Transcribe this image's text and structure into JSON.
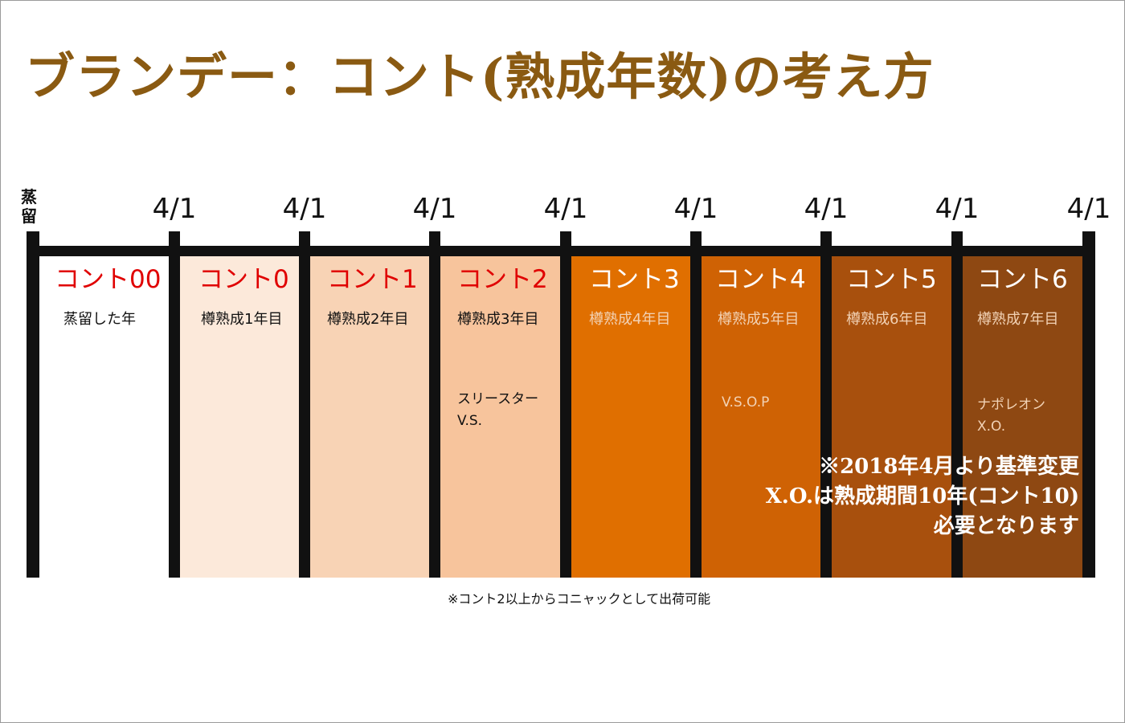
{
  "title": "ブランデー：コント(熟成年数)の考え方",
  "distill_label": "蒸留",
  "date_label": "4/1",
  "periods": [
    {
      "cont": "コント00",
      "sub": "蒸留した年",
      "fill": "#ffffff",
      "cont_color": "#e00000",
      "text_color": "#111111"
    },
    {
      "cont": "コント0",
      "sub": "樽熟成1年目",
      "fill": "#fce9da",
      "cont_color": "#e00000",
      "text_color": "#111111"
    },
    {
      "cont": "コント1",
      "sub": "樽熟成2年目",
      "fill": "#f8d3b5",
      "cont_color": "#e00000",
      "text_color": "#111111"
    },
    {
      "cont": "コント2",
      "sub": "樽熟成3年目",
      "grades": [
        "スリースター",
        "V.S."
      ],
      "fill": "#f7c49c",
      "cont_color": "#e00000",
      "text_color": "#111111"
    },
    {
      "cont": "コント3",
      "sub": "樽熟成4年目",
      "fill": "#e06f00",
      "cont_color": "#ffffff",
      "text_color": "#f2d2b5"
    },
    {
      "cont": "コント4",
      "sub": "樽熟成5年目",
      "grades": [
        "V.S.O.P"
      ],
      "fill": "#cf6204",
      "cont_color": "#ffffff",
      "text_color": "#f2d2b5"
    },
    {
      "cont": "コント5",
      "sub": "樽熟成6年目",
      "fill": "#a8500d",
      "cont_color": "#ffffff",
      "text_color": "#f2d2b5"
    },
    {
      "cont": "コント6",
      "sub": "樽熟成7年目",
      "grades": [
        "ナポレオン",
        "X.O."
      ],
      "fill": "#8e4812",
      "cont_color": "#ffffff",
      "text_color": "#f2d2b5"
    }
  ],
  "note": [
    "※2018年4月より基準変更",
    "X.O.は熟成期間10年(コント10)",
    "必要となります"
  ],
  "footnote": "※コント2以上からコニャックとして出荷可能"
}
